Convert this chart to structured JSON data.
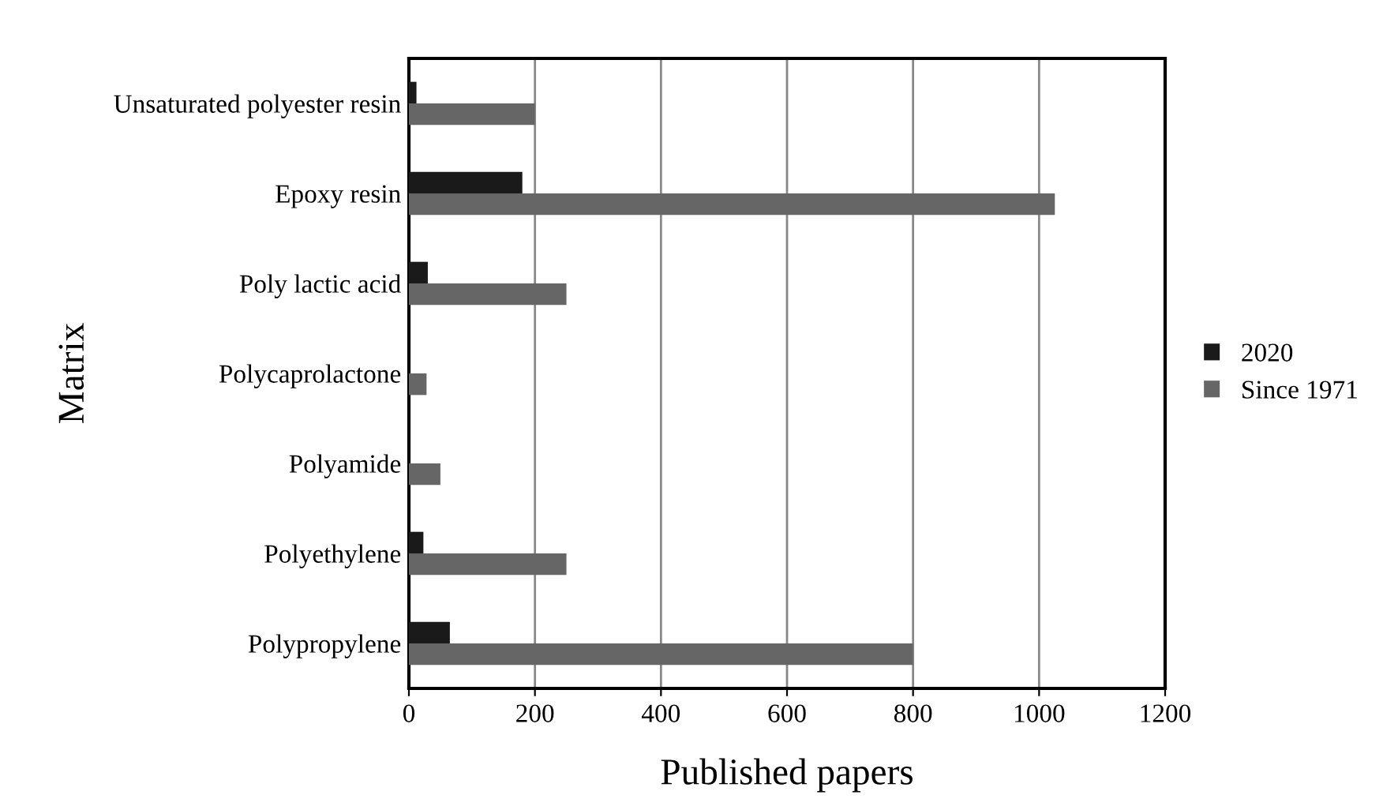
{
  "chart_data": {
    "type": "bar",
    "orientation": "horizontal",
    "xlabel": "Published papers",
    "ylabel": "Matrix",
    "categories": [
      "Unsaturated polyester resin",
      "Epoxy resin",
      "Poly lactic acid",
      "Polycaprolactone",
      "Polyamide",
      "Polyethylene",
      "Polypropylene"
    ],
    "series": [
      {
        "name": "2020",
        "color": "#1a1a1a",
        "values": [
          12,
          180,
          30,
          0,
          0,
          23,
          65
        ]
      },
      {
        "name": "Since 1971",
        "color": "#666666",
        "values": [
          200,
          1025,
          250,
          28,
          50,
          250,
          800
        ]
      }
    ],
    "xlim": [
      0,
      1200
    ],
    "xticks": [
      0,
      200,
      400,
      600,
      800,
      1000,
      1200
    ],
    "grid": "x",
    "legend": "right"
  }
}
